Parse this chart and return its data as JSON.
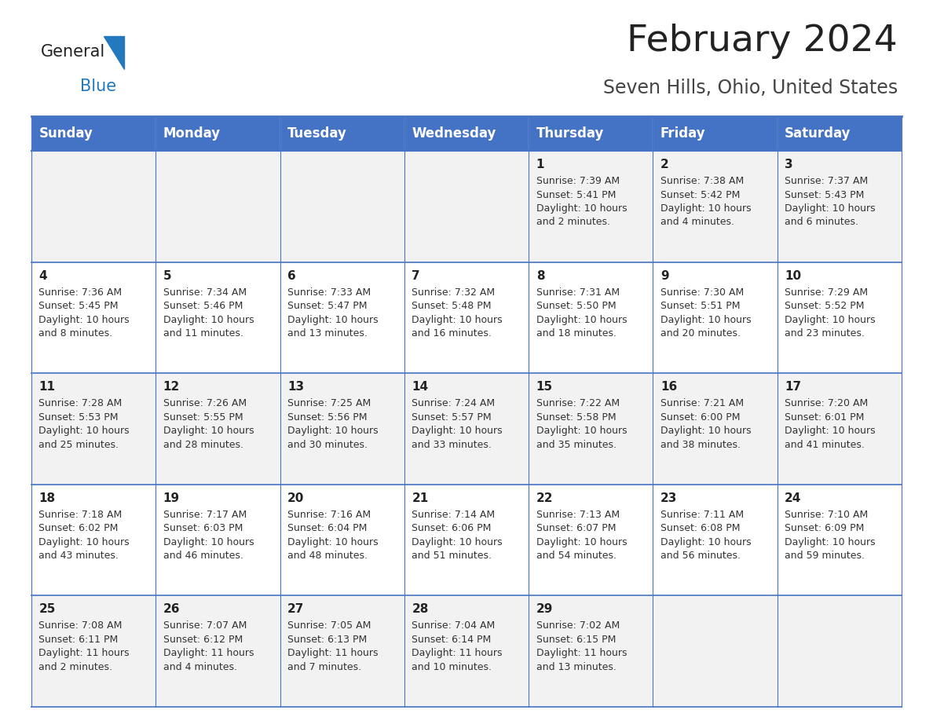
{
  "title": "February 2024",
  "subtitle": "Seven Hills, Ohio, United States",
  "header_bg_color": "#4472C4",
  "header_text_color": "#FFFFFF",
  "row_bg_color_odd": "#F2F2F2",
  "row_bg_color_even": "#FFFFFF",
  "grid_line_color": "#4472C4",
  "day_names": [
    "Sunday",
    "Monday",
    "Tuesday",
    "Wednesday",
    "Thursday",
    "Friday",
    "Saturday"
  ],
  "title_fontsize": 34,
  "subtitle_fontsize": 17,
  "header_fontsize": 12,
  "cell_fontsize": 9,
  "day_num_fontsize": 11,
  "cell_text_color": "#333333",
  "day_num_color": "#222222",
  "title_color": "#222222",
  "subtitle_color": "#444444",
  "logo_general_color": "#222222",
  "logo_blue_color": "#2478BE",
  "logo_triangle_color": "#2478BE",
  "calendar": [
    [
      {
        "day": null,
        "info": null
      },
      {
        "day": null,
        "info": null
      },
      {
        "day": null,
        "info": null
      },
      {
        "day": null,
        "info": null
      },
      {
        "day": 1,
        "info": "Sunrise: 7:39 AM\nSunset: 5:41 PM\nDaylight: 10 hours\nand 2 minutes."
      },
      {
        "day": 2,
        "info": "Sunrise: 7:38 AM\nSunset: 5:42 PM\nDaylight: 10 hours\nand 4 minutes."
      },
      {
        "day": 3,
        "info": "Sunrise: 7:37 AM\nSunset: 5:43 PM\nDaylight: 10 hours\nand 6 minutes."
      }
    ],
    [
      {
        "day": 4,
        "info": "Sunrise: 7:36 AM\nSunset: 5:45 PM\nDaylight: 10 hours\nand 8 minutes."
      },
      {
        "day": 5,
        "info": "Sunrise: 7:34 AM\nSunset: 5:46 PM\nDaylight: 10 hours\nand 11 minutes."
      },
      {
        "day": 6,
        "info": "Sunrise: 7:33 AM\nSunset: 5:47 PM\nDaylight: 10 hours\nand 13 minutes."
      },
      {
        "day": 7,
        "info": "Sunrise: 7:32 AM\nSunset: 5:48 PM\nDaylight: 10 hours\nand 16 minutes."
      },
      {
        "day": 8,
        "info": "Sunrise: 7:31 AM\nSunset: 5:50 PM\nDaylight: 10 hours\nand 18 minutes."
      },
      {
        "day": 9,
        "info": "Sunrise: 7:30 AM\nSunset: 5:51 PM\nDaylight: 10 hours\nand 20 minutes."
      },
      {
        "day": 10,
        "info": "Sunrise: 7:29 AM\nSunset: 5:52 PM\nDaylight: 10 hours\nand 23 minutes."
      }
    ],
    [
      {
        "day": 11,
        "info": "Sunrise: 7:28 AM\nSunset: 5:53 PM\nDaylight: 10 hours\nand 25 minutes."
      },
      {
        "day": 12,
        "info": "Sunrise: 7:26 AM\nSunset: 5:55 PM\nDaylight: 10 hours\nand 28 minutes."
      },
      {
        "day": 13,
        "info": "Sunrise: 7:25 AM\nSunset: 5:56 PM\nDaylight: 10 hours\nand 30 minutes."
      },
      {
        "day": 14,
        "info": "Sunrise: 7:24 AM\nSunset: 5:57 PM\nDaylight: 10 hours\nand 33 minutes."
      },
      {
        "day": 15,
        "info": "Sunrise: 7:22 AM\nSunset: 5:58 PM\nDaylight: 10 hours\nand 35 minutes."
      },
      {
        "day": 16,
        "info": "Sunrise: 7:21 AM\nSunset: 6:00 PM\nDaylight: 10 hours\nand 38 minutes."
      },
      {
        "day": 17,
        "info": "Sunrise: 7:20 AM\nSunset: 6:01 PM\nDaylight: 10 hours\nand 41 minutes."
      }
    ],
    [
      {
        "day": 18,
        "info": "Sunrise: 7:18 AM\nSunset: 6:02 PM\nDaylight: 10 hours\nand 43 minutes."
      },
      {
        "day": 19,
        "info": "Sunrise: 7:17 AM\nSunset: 6:03 PM\nDaylight: 10 hours\nand 46 minutes."
      },
      {
        "day": 20,
        "info": "Sunrise: 7:16 AM\nSunset: 6:04 PM\nDaylight: 10 hours\nand 48 minutes."
      },
      {
        "day": 21,
        "info": "Sunrise: 7:14 AM\nSunset: 6:06 PM\nDaylight: 10 hours\nand 51 minutes."
      },
      {
        "day": 22,
        "info": "Sunrise: 7:13 AM\nSunset: 6:07 PM\nDaylight: 10 hours\nand 54 minutes."
      },
      {
        "day": 23,
        "info": "Sunrise: 7:11 AM\nSunset: 6:08 PM\nDaylight: 10 hours\nand 56 minutes."
      },
      {
        "day": 24,
        "info": "Sunrise: 7:10 AM\nSunset: 6:09 PM\nDaylight: 10 hours\nand 59 minutes."
      }
    ],
    [
      {
        "day": 25,
        "info": "Sunrise: 7:08 AM\nSunset: 6:11 PM\nDaylight: 11 hours\nand 2 minutes."
      },
      {
        "day": 26,
        "info": "Sunrise: 7:07 AM\nSunset: 6:12 PM\nDaylight: 11 hours\nand 4 minutes."
      },
      {
        "day": 27,
        "info": "Sunrise: 7:05 AM\nSunset: 6:13 PM\nDaylight: 11 hours\nand 7 minutes."
      },
      {
        "day": 28,
        "info": "Sunrise: 7:04 AM\nSunset: 6:14 PM\nDaylight: 11 hours\nand 10 minutes."
      },
      {
        "day": 29,
        "info": "Sunrise: 7:02 AM\nSunset: 6:15 PM\nDaylight: 11 hours\nand 13 minutes."
      },
      {
        "day": null,
        "info": null
      },
      {
        "day": null,
        "info": null
      }
    ]
  ]
}
